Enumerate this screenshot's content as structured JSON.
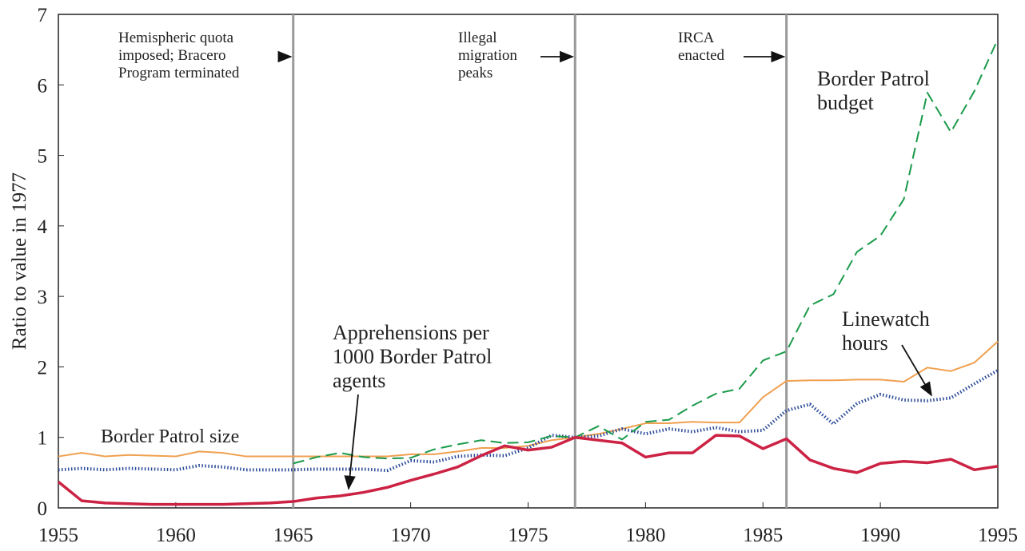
{
  "chart_data": {
    "type": "line",
    "ylabel": "Ratio to value in 1977",
    "x": [
      1955,
      1956,
      1957,
      1958,
      1959,
      1960,
      1961,
      1962,
      1963,
      1964,
      1965,
      1966,
      1967,
      1968,
      1969,
      1970,
      1971,
      1972,
      1973,
      1974,
      1975,
      1976,
      1977,
      1978,
      1979,
      1980,
      1981,
      1982,
      1983,
      1984,
      1985,
      1986,
      1987,
      1988,
      1989,
      1990,
      1991,
      1992,
      1993,
      1994,
      1995
    ],
    "xlim": [
      1955,
      1995
    ],
    "xticks": [
      1955,
      1960,
      1965,
      1970,
      1975,
      1980,
      1985,
      1990,
      1995
    ],
    "ylim": [
      0,
      7
    ],
    "yticks": [
      0,
      1,
      2,
      3,
      4,
      5,
      6,
      7
    ],
    "series": [
      {
        "name": "Border Patrol size",
        "color": "#f0a050",
        "style": "solid",
        "values": [
          0.73,
          0.78,
          0.73,
          0.75,
          0.74,
          0.73,
          0.8,
          0.78,
          0.73,
          0.73,
          0.73,
          0.73,
          0.73,
          0.73,
          0.73,
          0.76,
          0.76,
          0.8,
          0.85,
          0.85,
          0.88,
          0.96,
          1.0,
          1.05,
          1.12,
          1.2,
          1.2,
          1.22,
          1.21,
          1.21,
          1.57,
          1.8,
          1.81,
          1.81,
          1.82,
          1.82,
          1.79,
          1.99,
          1.94,
          2.06,
          2.36
        ]
      },
      {
        "name": "Linewatch hours",
        "color": "#2a4a9a",
        "style": "dotted",
        "values": [
          0.54,
          0.56,
          0.54,
          0.56,
          0.55,
          0.54,
          0.6,
          0.58,
          0.54,
          0.54,
          0.54,
          0.55,
          0.55,
          0.55,
          0.53,
          0.67,
          0.65,
          0.73,
          0.75,
          0.74,
          0.85,
          1.03,
          1.0,
          1.02,
          1.12,
          1.05,
          1.12,
          1.08,
          1.14,
          1.08,
          1.1,
          1.38,
          1.47,
          1.19,
          1.48,
          1.61,
          1.53,
          1.52,
          1.56,
          1.76,
          1.95
        ]
      },
      {
        "name": "Border Patrol budget",
        "color": "#1a9a4a",
        "style": "dashed",
        "values": [
          null,
          null,
          null,
          null,
          null,
          null,
          null,
          null,
          null,
          null,
          0.63,
          0.72,
          0.78,
          0.72,
          0.7,
          0.71,
          0.83,
          0.9,
          0.96,
          0.92,
          0.93,
          1.02,
          1.0,
          1.16,
          0.97,
          1.22,
          1.25,
          1.45,
          1.62,
          1.69,
          2.09,
          2.22,
          2.87,
          3.03,
          3.63,
          3.86,
          4.38,
          5.89,
          5.33,
          5.91,
          6.65
        ]
      },
      {
        "name": "Apprehensions per 1000 Border Patrol agents",
        "color": "#cc2244",
        "style": "thick",
        "values": [
          0.37,
          0.1,
          0.07,
          0.06,
          0.05,
          0.05,
          0.05,
          0.05,
          0.06,
          0.07,
          0.09,
          0.14,
          0.17,
          0.22,
          0.29,
          0.39,
          0.48,
          0.58,
          0.74,
          0.88,
          0.82,
          0.86,
          1.0,
          0.96,
          0.92,
          0.72,
          0.78,
          0.78,
          1.03,
          1.02,
          0.84,
          0.98,
          0.68,
          0.56,
          0.5,
          0.63,
          0.66,
          0.64,
          0.69,
          0.54,
          0.59
        ]
      }
    ],
    "events": [
      {
        "x": 1965,
        "label": "Hemispheric quota imposed; Bracero Program terminated"
      },
      {
        "x": 1977,
        "label": "Illegal migration peaks"
      },
      {
        "x": 1986,
        "label": "IRCA enacted"
      }
    ]
  }
}
